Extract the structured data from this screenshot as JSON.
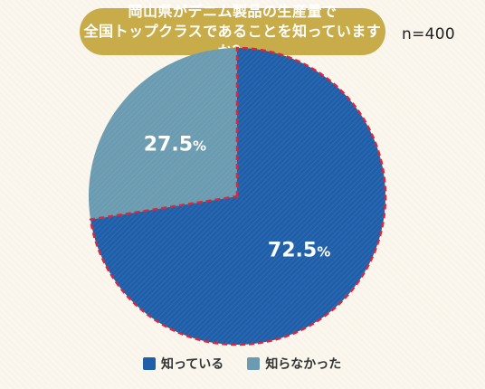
{
  "header": {
    "title_line1": "岡山県がデニム製品の生産量で",
    "title_line2": "全国トップクラスであることを知っていますか？",
    "sample_size": "n=400",
    "title_color": "#c9ac4a"
  },
  "chart_data": {
    "type": "pie",
    "title": "岡山県がデニム製品の生産量で全国トップクラスであることを知っていますか？",
    "categories": [
      "知っている",
      "知らなかった"
    ],
    "values": [
      72.5,
      27.5
    ],
    "labels": [
      "72.5%",
      "27.5%"
    ],
    "colors": [
      "#1f5faa",
      "#6a9bb0"
    ],
    "highlight_border": "#d9283a",
    "start_angle_deg": 0,
    "direction": "clockwise",
    "legend_position": "bottom"
  },
  "legend": [
    {
      "label": "知っている",
      "color": "#1f5faa"
    },
    {
      "label": "知らなかった",
      "color": "#6a9bb0"
    }
  ]
}
